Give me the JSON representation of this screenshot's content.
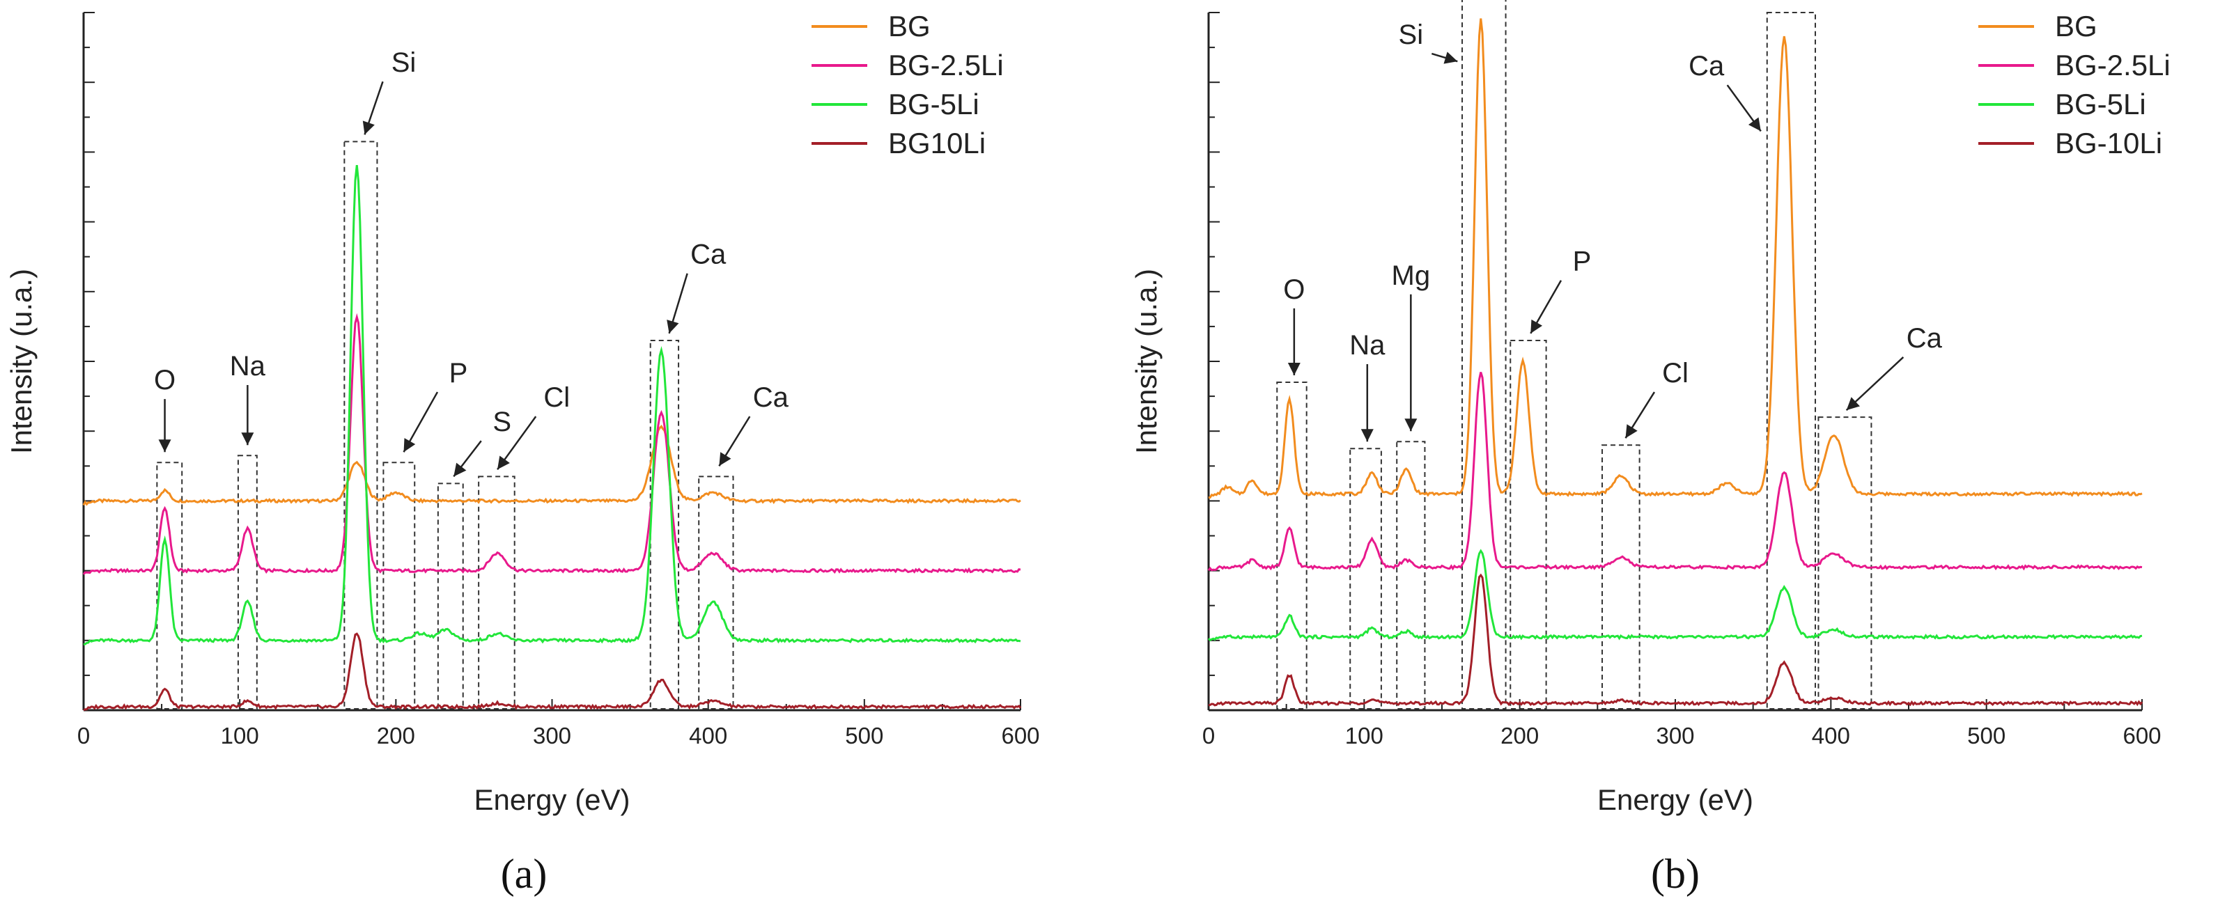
{
  "chart_data": [
    {
      "type": "line",
      "panel_label": "(a)",
      "xlabel": "Energy (eV)",
      "ylabel": "Intensity (u.a.)",
      "xlim": [
        0,
        600
      ],
      "xticks": [
        0,
        100,
        200,
        300,
        400,
        500,
        600
      ],
      "legend_position": "top-right",
      "series": [
        {
          "name": "BG",
          "color": "#f28c1e",
          "offset": 0.3,
          "scale": 1.0,
          "peaks": [
            [
              52,
              0.015,
              3
            ],
            [
              175,
              0.055,
              5
            ],
            [
              200,
              0.012,
              5
            ],
            [
              370,
              0.105,
              6
            ],
            [
              403,
              0.012,
              6
            ]
          ]
        },
        {
          "name": "BG-2.5Li",
          "color": "#e8198c",
          "offset": 0.2,
          "scale": 1.0,
          "peaks": [
            [
              52,
              0.09,
              3
            ],
            [
              105,
              0.06,
              3.5
            ],
            [
              175,
              0.365,
              4
            ],
            [
              265,
              0.025,
              5
            ],
            [
              370,
              0.225,
              5
            ],
            [
              403,
              0.025,
              6
            ]
          ]
        },
        {
          "name": "BG-5Li",
          "color": "#22e63a",
          "offset": 0.1,
          "scale": 1.0,
          "peaks": [
            [
              52,
              0.145,
              3
            ],
            [
              105,
              0.055,
              3.5
            ],
            [
              175,
              0.68,
              4
            ],
            [
              215,
              0.01,
              5
            ],
            [
              232,
              0.015,
              5
            ],
            [
              265,
              0.01,
              5
            ],
            [
              370,
              0.415,
              5
            ],
            [
              403,
              0.055,
              6
            ]
          ]
        },
        {
          "name": "BG10Li",
          "color": "#a31f28",
          "offset": 0.005,
          "scale": 1.0,
          "peaks": [
            [
              52,
              0.025,
              3
            ],
            [
              105,
              0.008,
              3.5
            ],
            [
              175,
              0.105,
              4
            ],
            [
              265,
              0.005,
              5
            ],
            [
              370,
              0.038,
              5
            ],
            [
              403,
              0.008,
              6
            ]
          ]
        }
      ],
      "boxes": [
        [
          47,
          63,
          0.355
        ],
        [
          99,
          111,
          0.365
        ],
        [
          167,
          188,
          0.815
        ],
        [
          192,
          212,
          0.355
        ],
        [
          227,
          243,
          0.325
        ],
        [
          253,
          276,
          0.335
        ],
        [
          363,
          381,
          0.53
        ],
        [
          394,
          416,
          0.335
        ]
      ],
      "annotations": [
        {
          "text": "O",
          "x": 52,
          "ytext": 0.46,
          "ytip": 0.37
        },
        {
          "text": "Na",
          "x": 105,
          "ytext": 0.48,
          "ytip": 0.38
        },
        {
          "text": "Si",
          "x": 205,
          "ytext": 0.915,
          "ytip": 0.825,
          "tipx": 180
        },
        {
          "text": "P",
          "x": 240,
          "ytext": 0.47,
          "ytip": 0.37,
          "tipx": 205
        },
        {
          "text": "S",
          "x": 268,
          "ytext": 0.4,
          "ytip": 0.335,
          "tipx": 237
        },
        {
          "text": "Cl",
          "x": 303,
          "ytext": 0.435,
          "ytip": 0.345,
          "tipx": 265
        },
        {
          "text": "Ca",
          "x": 400,
          "ytext": 0.64,
          "ytip": 0.54,
          "tipx": 375
        },
        {
          "text": "Ca",
          "x": 440,
          "ytext": 0.435,
          "ytip": 0.35,
          "tipx": 407
        }
      ]
    },
    {
      "type": "line",
      "panel_label": "(b)",
      "xlabel": "Energy (eV)",
      "ylabel": "Intensity (u.a.)",
      "xlim": [
        0,
        600
      ],
      "xticks": [
        0,
        100,
        200,
        300,
        400,
        500,
        600
      ],
      "legend_position": "top-right",
      "series": [
        {
          "name": "BG",
          "color": "#f28c1e",
          "offset": 0.31,
          "scale": 1.0,
          "peaks": [
            [
              12,
              0.01,
              3
            ],
            [
              28,
              0.02,
              3
            ],
            [
              52,
              0.135,
              3
            ],
            [
              105,
              0.03,
              3.5
            ],
            [
              127,
              0.035,
              3.5
            ],
            [
              175,
              0.68,
              4
            ],
            [
              202,
              0.19,
              4
            ],
            [
              265,
              0.025,
              5
            ],
            [
              333,
              0.015,
              5
            ],
            [
              370,
              0.655,
              5
            ],
            [
              402,
              0.085,
              6
            ]
          ]
        },
        {
          "name": "BG-2.5Li",
          "color": "#e8198c",
          "offset": 0.205,
          "scale": 1.0,
          "peaks": [
            [
              28,
              0.01,
              3
            ],
            [
              52,
              0.055,
              3
            ],
            [
              105,
              0.04,
              3.5
            ],
            [
              127,
              0.01,
              3.5
            ],
            [
              175,
              0.28,
              4
            ],
            [
              265,
              0.015,
              5
            ],
            [
              370,
              0.135,
              5
            ],
            [
              402,
              0.02,
              6
            ]
          ]
        },
        {
          "name": "BG-5Li",
          "color": "#22e63a",
          "offset": 0.105,
          "scale": 1.0,
          "peaks": [
            [
              52,
              0.03,
              3
            ],
            [
              105,
              0.012,
              3.5
            ],
            [
              127,
              0.008,
              3.5
            ],
            [
              175,
              0.125,
              4
            ],
            [
              370,
              0.07,
              5
            ],
            [
              402,
              0.01,
              6
            ]
          ]
        },
        {
          "name": "BG-10Li",
          "color": "#a31f28",
          "offset": 0.01,
          "scale": 1.0,
          "peaks": [
            [
              52,
              0.04,
              3
            ],
            [
              105,
              0.005,
              3.5
            ],
            [
              175,
              0.185,
              4
            ],
            [
              265,
              0.004,
              5
            ],
            [
              370,
              0.058,
              5
            ],
            [
              402,
              0.008,
              6
            ]
          ]
        }
      ],
      "boxes": [
        [
          44,
          63,
          0.47
        ],
        [
          91,
          111,
          0.375
        ],
        [
          121,
          139,
          0.385
        ],
        [
          163,
          191,
          1.02
        ],
        [
          194,
          217,
          0.53
        ],
        [
          253,
          277,
          0.38
        ],
        [
          359,
          390,
          1.0
        ],
        [
          392,
          426,
          0.42
        ]
      ],
      "annotations": [
        {
          "text": "O",
          "x": 55,
          "ytext": 0.59,
          "ytip": 0.48
        },
        {
          "text": "Na",
          "x": 102,
          "ytext": 0.51,
          "ytip": 0.385
        },
        {
          "text": "Mg",
          "x": 130,
          "ytext": 0.61,
          "ytip": 0.4
        },
        {
          "text": "Si",
          "x": 130,
          "ytext": 0.955,
          "ytip": 0.93,
          "tipx": 160
        },
        {
          "text": "P",
          "x": 240,
          "ytext": 0.63,
          "ytip": 0.54,
          "tipx": 207
        },
        {
          "text": "Cl",
          "x": 300,
          "ytext": 0.47,
          "ytip": 0.39,
          "tipx": 268
        },
        {
          "text": "Ca",
          "x": 320,
          "ytext": 0.91,
          "ytip": 0.83,
          "tipx": 355
        },
        {
          "text": "Ca",
          "x": 460,
          "ytext": 0.52,
          "ytip": 0.43,
          "tipx": 410
        }
      ]
    }
  ]
}
